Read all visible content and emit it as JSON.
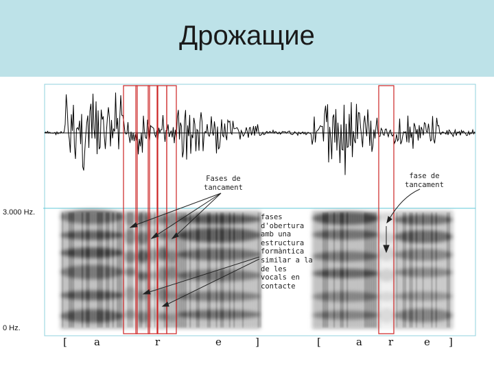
{
  "slide": {
    "title": "Дрожащие"
  },
  "figure": {
    "axis": {
      "top_label": "3.000 Hz.",
      "bottom_label": "0 Hz."
    },
    "annotations": {
      "fases_tancament": [
        "Fases de",
        "tancament"
      ],
      "fase_tancament": [
        "fase de",
        "tancament"
      ],
      "fases_obertura": [
        "fases",
        "d'obertura",
        "amb una",
        "estructura",
        "formàntica",
        "similar a la",
        "de les",
        "vocals en",
        "contacte"
      ]
    },
    "transcription": [
      "[",
      "a",
      "r",
      "e",
      "]",
      "[",
      "a",
      "r",
      "e",
      "]"
    ],
    "colors": {
      "title_band": "#bde2e8",
      "highlight_box": "#cc2222",
      "cursor_line": "#5fc8d8",
      "waveform": "#000000"
    }
  }
}
